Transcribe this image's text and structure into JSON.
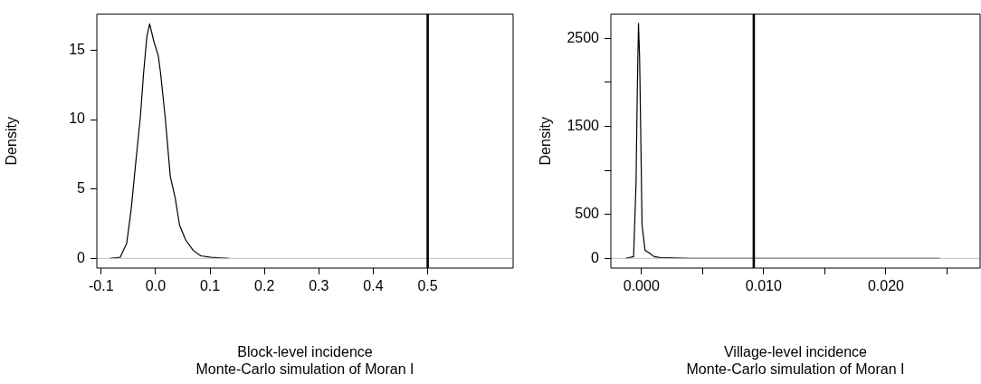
{
  "chart_data": [
    {
      "type": "line",
      "xlabel": "Block-level incidence\nMonte-Carlo simulation of Moran I",
      "ylabel": "Density",
      "xlim": [
        -0.108,
        0.657
      ],
      "ylim": [
        -0.7,
        17.6
      ],
      "xticks": [
        -0.1,
        {
          "value": 0,
          "label": "0.0"
        },
        0.1,
        0.2,
        0.3,
        0.4,
        0.5
      ],
      "yticks": [
        0,
        5,
        10,
        15
      ],
      "grid": false,
      "legend": false,
      "marker": "none",
      "line_style": "solid",
      "series": [
        {
          "color": "#000000",
          "x": [
            -0.084,
            -0.065,
            -0.053,
            -0.045,
            -0.037,
            -0.028,
            -0.022,
            -0.016,
            -0.011,
            -0.003,
            0.005,
            0.009,
            0.018,
            0.027,
            0.036,
            0.044,
            0.055,
            0.069,
            0.083,
            0.102,
            0.135
          ],
          "values": [
            0,
            0.08,
            1.1,
            3.5,
            6.7,
            10.2,
            13.4,
            16.0,
            16.9,
            15.6,
            14.6,
            13.4,
            10.0,
            5.9,
            4.35,
            2.4,
            1.34,
            0.58,
            0.18,
            0.08,
            0
          ]
        }
      ],
      "ref_lines": [
        {
          "axis": "y",
          "value": 0,
          "color": "#bebebe"
        },
        {
          "axis": "x",
          "value": 0.5,
          "color": "#000000"
        }
      ]
    },
    {
      "type": "line",
      "xlabel": "Village-level incidence\nMonte-Carlo simulation of Moran I",
      "ylabel": "Density",
      "xlim": [
        -0.0025,
        0.0277
      ],
      "ylim": [
        -110,
        2775
      ],
      "xticks": [
        {
          "value": 0,
          "label": "0.000"
        },
        {
          "value": 0.005,
          "label": null
        },
        {
          "value": 0.01,
          "label": "0.010"
        },
        {
          "value": 0.015,
          "label": null
        },
        {
          "value": 0.02,
          "label": "0.020"
        },
        {
          "value": 0.025,
          "label": null
        }
      ],
      "yticks": [
        0,
        500,
        {
          "value": 1000,
          "label": null
        },
        1500,
        {
          "value": 2000,
          "label": null
        },
        2500
      ],
      "grid": false,
      "legend": false,
      "marker": "none",
      "line_style": "solid",
      "series": [
        {
          "color": "#000000",
          "x": [
            -0.0013,
            -0.00064,
            -0.00044,
            -0.00034,
            -0.00024,
            -0.00015,
            -5e-05,
            5e-05,
            0.0003,
            0.00067,
            0.00104,
            0.00153,
            0.004,
            0.0244
          ],
          "values": [
            0,
            20,
            860,
            1880,
            2670,
            2290,
            1370,
            380,
            90,
            60,
            20,
            10,
            0,
            0
          ]
        }
      ],
      "ref_lines": [
        {
          "axis": "y",
          "value": 0,
          "color": "#bebebe"
        },
        {
          "axis": "x",
          "value": 0.00919,
          "color": "#000000"
        }
      ]
    }
  ]
}
